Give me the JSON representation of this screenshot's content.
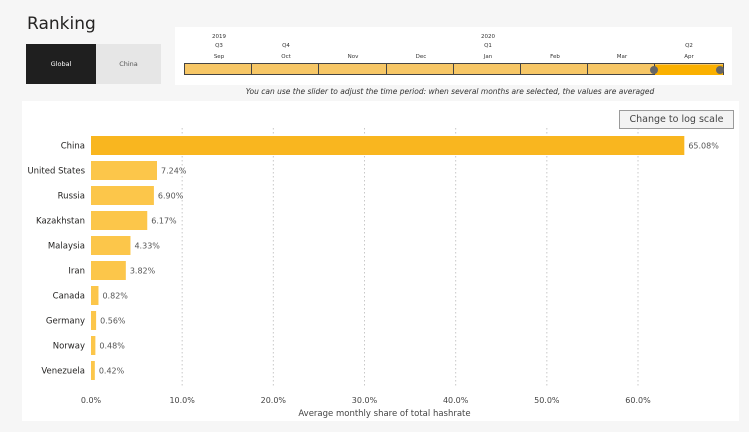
{
  "title": "Ranking",
  "filter": {
    "global_label": "Global",
    "china_label": "China"
  },
  "slider": {
    "years": [
      {
        "label": "2019"
      },
      {
        "label": "2020"
      }
    ],
    "quarters": [
      "Q3",
      "Q4",
      "Q1",
      "Q2"
    ],
    "months": [
      "Sep",
      "Oct",
      "Nov",
      "Dec",
      "Jan",
      "Feb",
      "Mar",
      "Apr"
    ],
    "selected_months": [
      "Apr"
    ],
    "hint": "You can use the slider to adjust the time period: when several months are selected, the values are averaged"
  },
  "log_button_label": "Change to log scale",
  "colors": {
    "bar": "#f9b61f",
    "bar_light": "#fcc64a",
    "active_filter": "#1f1f1f",
    "grid": "#c8c8c8"
  },
  "chart_data": {
    "type": "bar",
    "orientation": "horizontal",
    "categories": [
      "China",
      "United States",
      "Russia",
      "Kazakhstan",
      "Malaysia",
      "Iran",
      "Canada",
      "Germany",
      "Norway",
      "Venezuela"
    ],
    "values": [
      65.08,
      7.24,
      6.9,
      6.17,
      4.33,
      3.82,
      0.82,
      0.56,
      0.48,
      0.42
    ],
    "value_labels": [
      "65.08%",
      "7.24%",
      "6.90%",
      "6.17%",
      "4.33%",
      "3.82%",
      "0.82%",
      "0.56%",
      "0.48%",
      "0.42%"
    ],
    "xlabel": "Average monthly share of total hashrate",
    "ylabel": "",
    "xlim": [
      0,
      70
    ],
    "xticks": [
      0,
      10,
      20,
      30,
      40,
      50,
      60
    ],
    "xtick_labels": [
      "0.0%",
      "10.0%",
      "20.0%",
      "30.0%",
      "40.0%",
      "50.0%",
      "60.0%"
    ],
    "grid": true
  }
}
